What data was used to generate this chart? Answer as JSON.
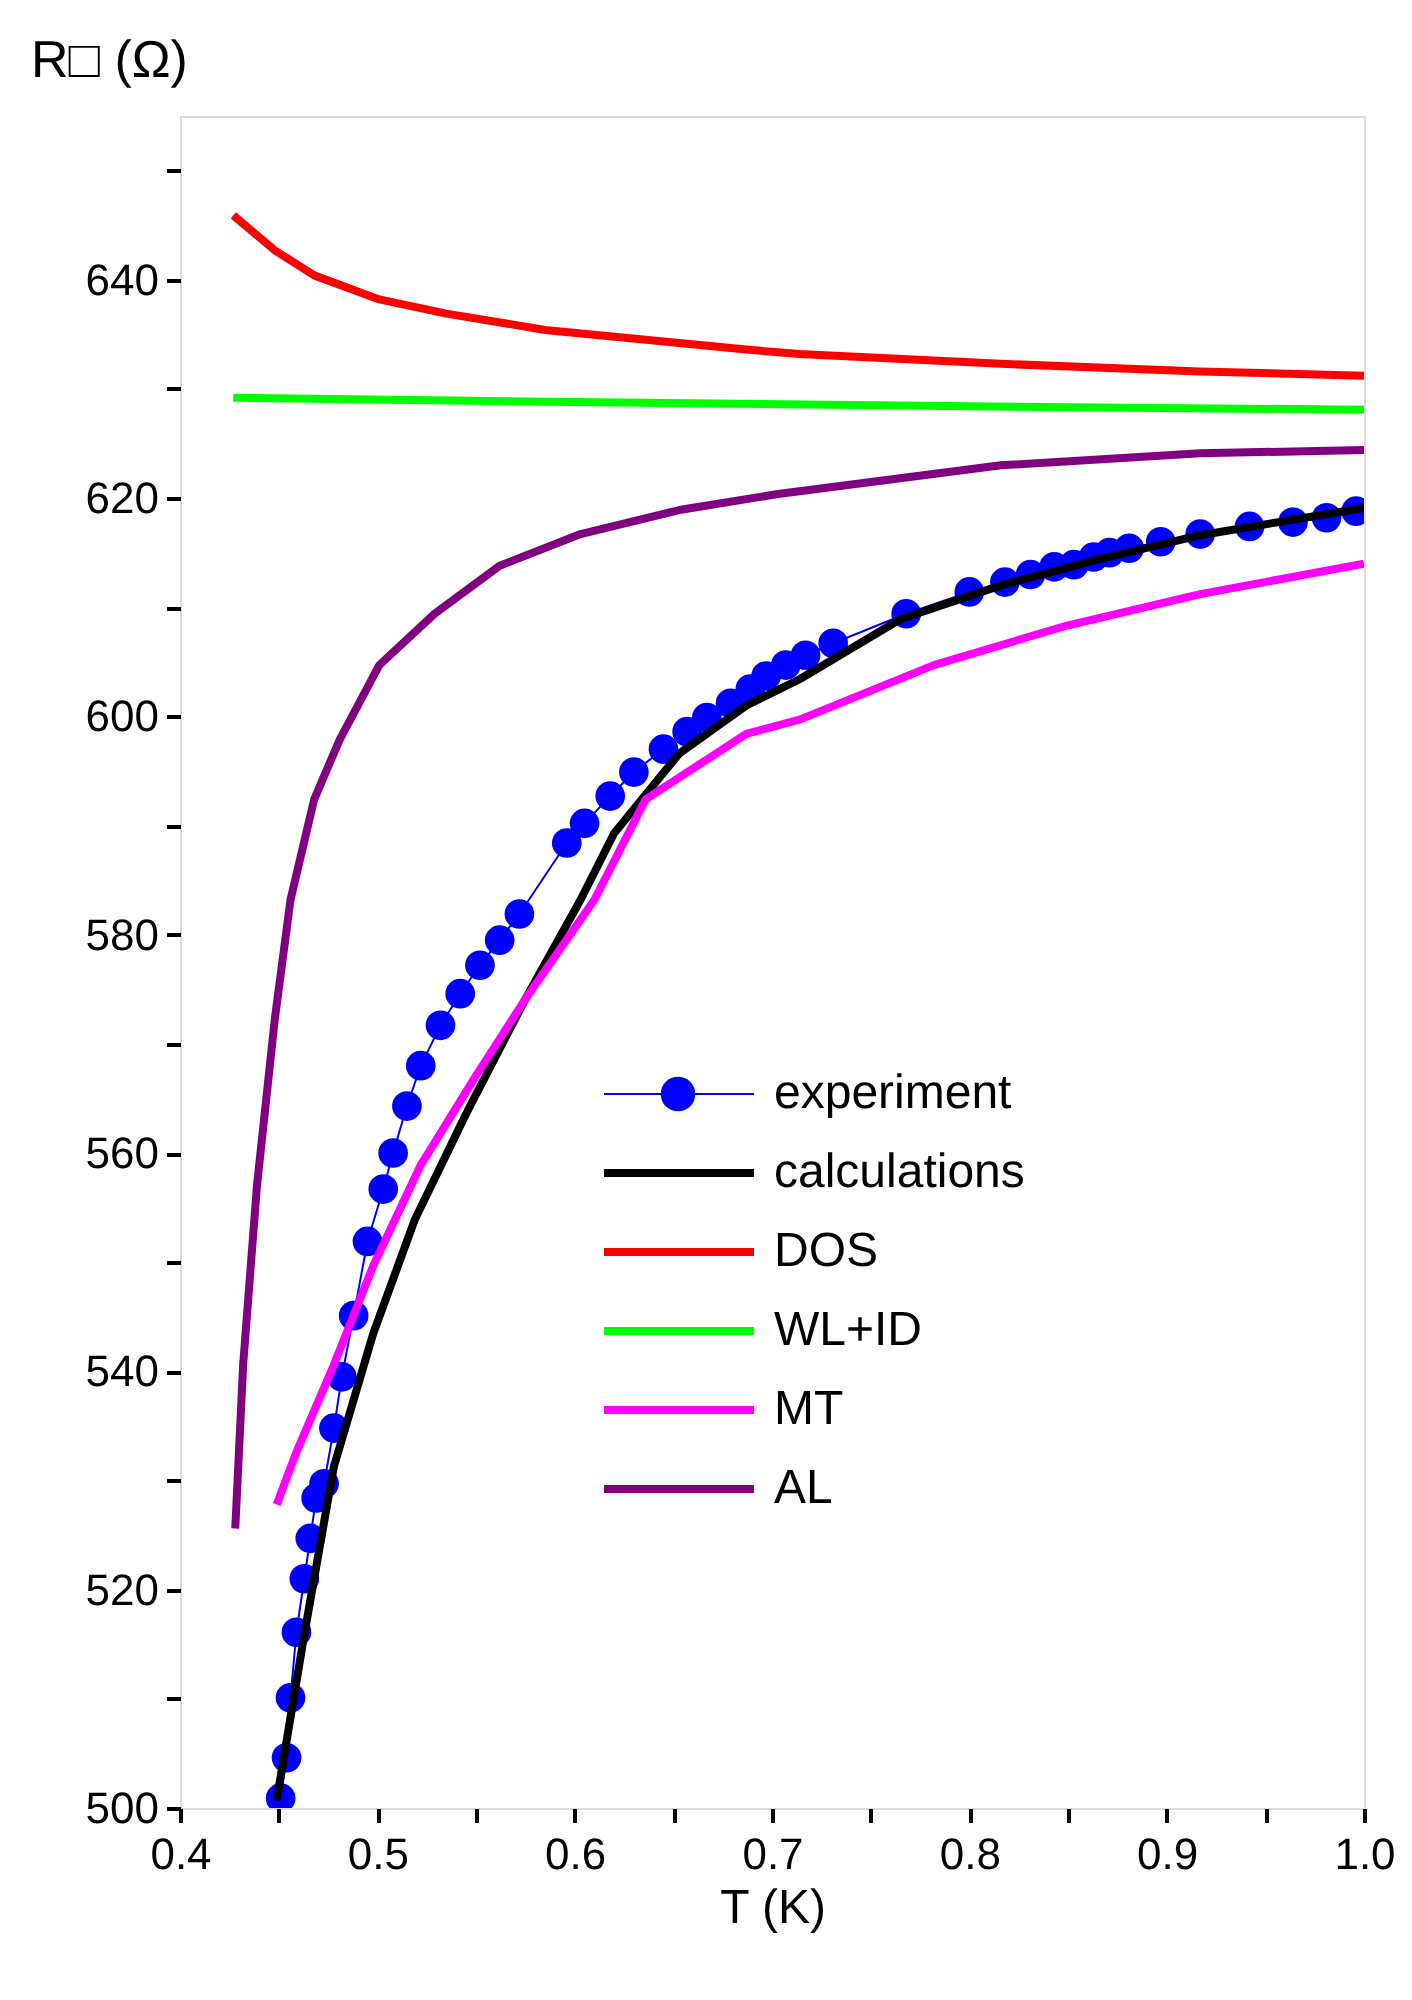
{
  "chart_data": {
    "type": "line",
    "xlabel": "T (K)",
    "ylabel": "R□ (Ω)",
    "xlim": [
      0.4,
      1.0
    ],
    "ylim": [
      500,
      655
    ],
    "xticks": [
      0.4,
      {
        "value": 0.45,
        "label": null
      },
      0.5,
      {
        "value": 0.55,
        "label": null
      },
      0.6,
      {
        "value": 0.65,
        "label": null
      },
      0.7,
      {
        "value": 0.75,
        "label": null
      },
      0.8,
      {
        "value": 0.85,
        "label": null
      },
      0.9,
      {
        "value": 0.95,
        "label": null
      },
      {
        "value": 1.0,
        "label": "1.0"
      }
    ],
    "yticks": [
      500,
      {
        "value": 510,
        "label": null
      },
      520,
      {
        "value": 530,
        "label": null
      },
      540,
      {
        "value": 550,
        "label": null
      },
      560,
      {
        "value": 570,
        "label": null
      },
      580,
      {
        "value": 590,
        "label": null
      },
      600,
      {
        "value": 610,
        "label": null
      },
      620,
      {
        "value": 630,
        "label": null
      },
      640,
      {
        "value": 650,
        "label": null
      }
    ],
    "grid": false,
    "legend": "bottom right",
    "series": [
      {
        "name": "experiment",
        "color": "#0000ff",
        "marker": "circle",
        "x": [
          0.451,
          0.454,
          0.456,
          0.459,
          0.463,
          0.466,
          0.469,
          0.473,
          0.478,
          0.482,
          0.488,
          0.495,
          0.503,
          0.508,
          0.515,
          0.522,
          0.532,
          0.542,
          0.552,
          0.562,
          0.572,
          0.596,
          0.605,
          0.618,
          0.63,
          0.645,
          0.657,
          0.667,
          0.679,
          0.689,
          0.697,
          0.707,
          0.717,
          0.731,
          0.768,
          0.8,
          0.818,
          0.831,
          0.843,
          0.853,
          0.863,
          0.871,
          0.881,
          0.897,
          0.917,
          0.942,
          0.964,
          0.981,
          0.996
        ],
        "values": [
          500.9,
          504.6,
          510.1,
          516.1,
          521.0,
          524.7,
          528.4,
          529.7,
          534.8,
          539.5,
          545.1,
          551.9,
          556.7,
          560.0,
          564.3,
          568.0,
          571.7,
          574.6,
          577.2,
          579.5,
          581.9,
          588.4,
          590.2,
          592.7,
          594.9,
          597.0,
          598.6,
          599.9,
          601.2,
          602.5,
          603.7,
          604.7,
          605.6,
          606.7,
          609.4,
          611.4,
          612.3,
          613.0,
          613.7,
          613.9,
          614.6,
          615.0,
          615.4,
          616.0,
          616.7,
          617.4,
          617.8,
          618.2,
          618.8
        ]
      },
      {
        "name": "calculations",
        "color": "#000000",
        "x": [
          0.449,
          0.463,
          0.478,
          0.498,
          0.519,
          0.545,
          0.575,
          0.603,
          0.62,
          0.653,
          0.687,
          0.714,
          0.765,
          0.816,
          0.866,
          0.917,
          1.0
        ],
        "values": [
          500.7,
          515.9,
          531.3,
          543.5,
          553.9,
          563.6,
          574.1,
          583.2,
          589.3,
          596.6,
          601.0,
          603.4,
          608.9,
          612.0,
          614.4,
          616.6,
          619.1
        ]
      },
      {
        "name": "DOS",
        "color": "#ff0000",
        "x": [
          0.427,
          0.448,
          0.468,
          0.501,
          0.535,
          0.585,
          0.636,
          0.687,
          0.714,
          0.816,
          0.917,
          1.0
        ],
        "values": [
          645.9,
          642.7,
          640.4,
          638.2,
          636.9,
          635.4,
          634.5,
          633.6,
          633.2,
          632.3,
          631.6,
          631.2
        ]
      },
      {
        "name": "WL+ID",
        "color": "#00ff00",
        "x": [
          0.427,
          0.6,
          0.8,
          1.0
        ],
        "values": [
          629.2,
          628.8,
          628.4,
          628.1
        ]
      },
      {
        "name": "MT",
        "color": "#ff00ff",
        "x": [
          0.449,
          0.459,
          0.478,
          0.498,
          0.522,
          0.549,
          0.575,
          0.61,
          0.636,
          0.687,
          0.714,
          0.782,
          0.849,
          0.917,
          1.0
        ],
        "values": [
          527.8,
          532.6,
          540.6,
          549.7,
          558.9,
          566.8,
          574.1,
          583.2,
          592.4,
          598.4,
          599.7,
          604.7,
          608.3,
          611.2,
          614.0
        ]
      },
      {
        "name": "AL",
        "color": "#800080",
        "x": [
          0.428,
          0.432,
          0.439,
          0.448,
          0.456,
          0.468,
          0.481,
          0.501,
          0.529,
          0.562,
          0.603,
          0.653,
          0.704,
          0.816,
          0.917,
          1.0
        ],
        "values": [
          525.6,
          540.6,
          557.0,
          572.2,
          583.2,
          592.4,
          597.9,
          604.7,
          609.4,
          613.8,
          616.7,
          618.9,
          620.4,
          623.0,
          624.1,
          624.4
        ]
      }
    ]
  }
}
